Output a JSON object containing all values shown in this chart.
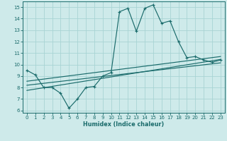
{
  "xlabel": "Humidex (Indice chaleur)",
  "bg_color": "#ceeaea",
  "line_color": "#1a6b6b",
  "grid_color": "#a8d4d4",
  "xlim": [
    -0.5,
    23.5
  ],
  "ylim": [
    5.8,
    15.5
  ],
  "yticks": [
    6,
    7,
    8,
    9,
    10,
    11,
    12,
    13,
    14,
    15
  ],
  "xticks": [
    0,
    1,
    2,
    3,
    4,
    5,
    6,
    7,
    8,
    9,
    10,
    11,
    12,
    13,
    14,
    15,
    16,
    17,
    18,
    19,
    20,
    21,
    22,
    23
  ],
  "main_line": {
    "x": [
      0,
      1,
      2,
      3,
      4,
      5,
      6,
      7,
      8,
      9,
      10,
      11,
      12,
      13,
      14,
      15,
      16,
      17,
      18,
      19,
      20,
      21,
      22,
      23
    ],
    "y": [
      9.5,
      9.1,
      8.0,
      8.0,
      7.5,
      6.2,
      7.0,
      8.0,
      8.1,
      9.0,
      9.3,
      14.6,
      14.9,
      12.9,
      14.9,
      15.2,
      13.6,
      13.8,
      12.0,
      10.6,
      10.7,
      10.4,
      10.2,
      10.4
    ]
  },
  "line2": {
    "x": [
      0,
      23
    ],
    "y": [
      8.2,
      10.15
    ]
  },
  "line3": {
    "x": [
      0,
      23
    ],
    "y": [
      7.75,
      10.45
    ]
  },
  "line4": {
    "x": [
      0,
      23
    ],
    "y": [
      8.55,
      10.7
    ]
  }
}
